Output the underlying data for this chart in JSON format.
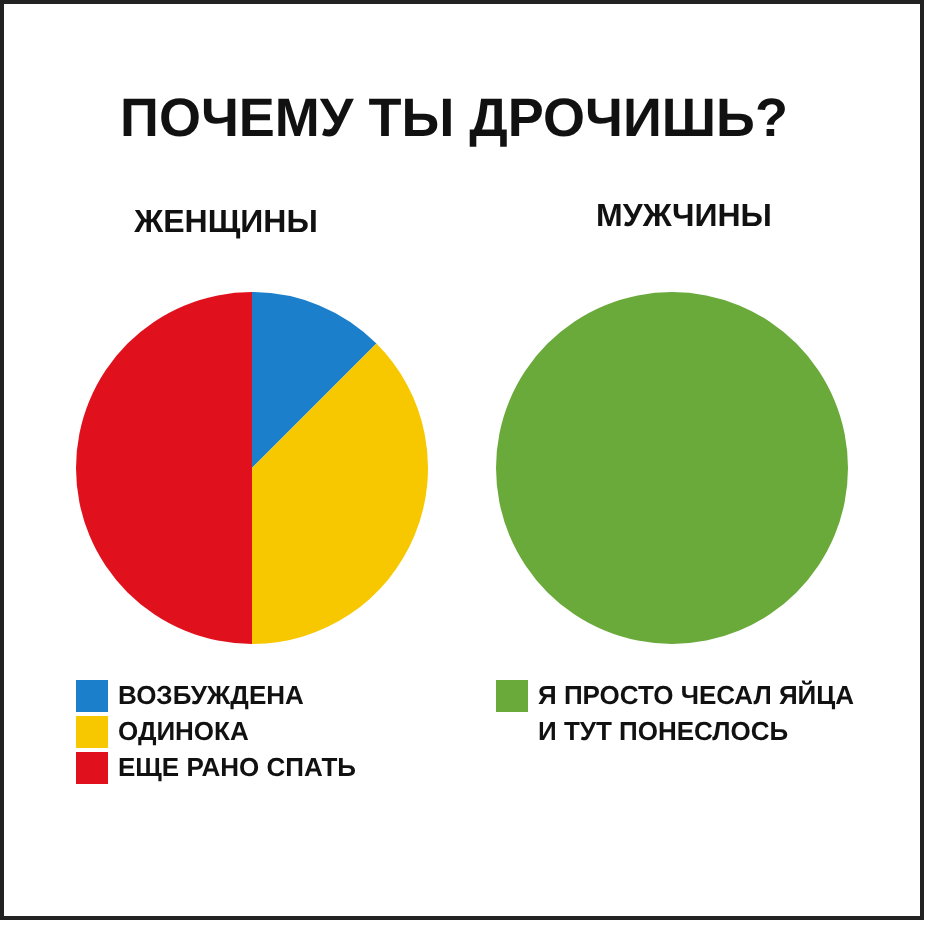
{
  "chart_data": [
    {
      "type": "other",
      "title": "ПОЧЕМУ ТЫ ДРОЧИШЬ?"
    },
    {
      "type": "pie",
      "title": "ЖЕНЩИНЫ",
      "categories": [
        "ВОЗБУЖДЕНА",
        "ОДИНОКА",
        "ЕЩЕ РАНО СПАТЬ"
      ],
      "values": [
        12.5,
        37.5,
        50
      ],
      "colors": [
        "#1b7fcc",
        "#f7c800",
        "#e0101c"
      ],
      "legend": "bottom"
    },
    {
      "type": "pie",
      "title": "МУЖЧИНЫ",
      "categories": [
        "Я ПРОСТО ЧЕСАЛ ЯЙЦА И ТУТ ПОНЕСЛОСЬ"
      ],
      "values": [
        100
      ],
      "colors": [
        "#6aaa3a"
      ],
      "legend": "bottom"
    }
  ]
}
